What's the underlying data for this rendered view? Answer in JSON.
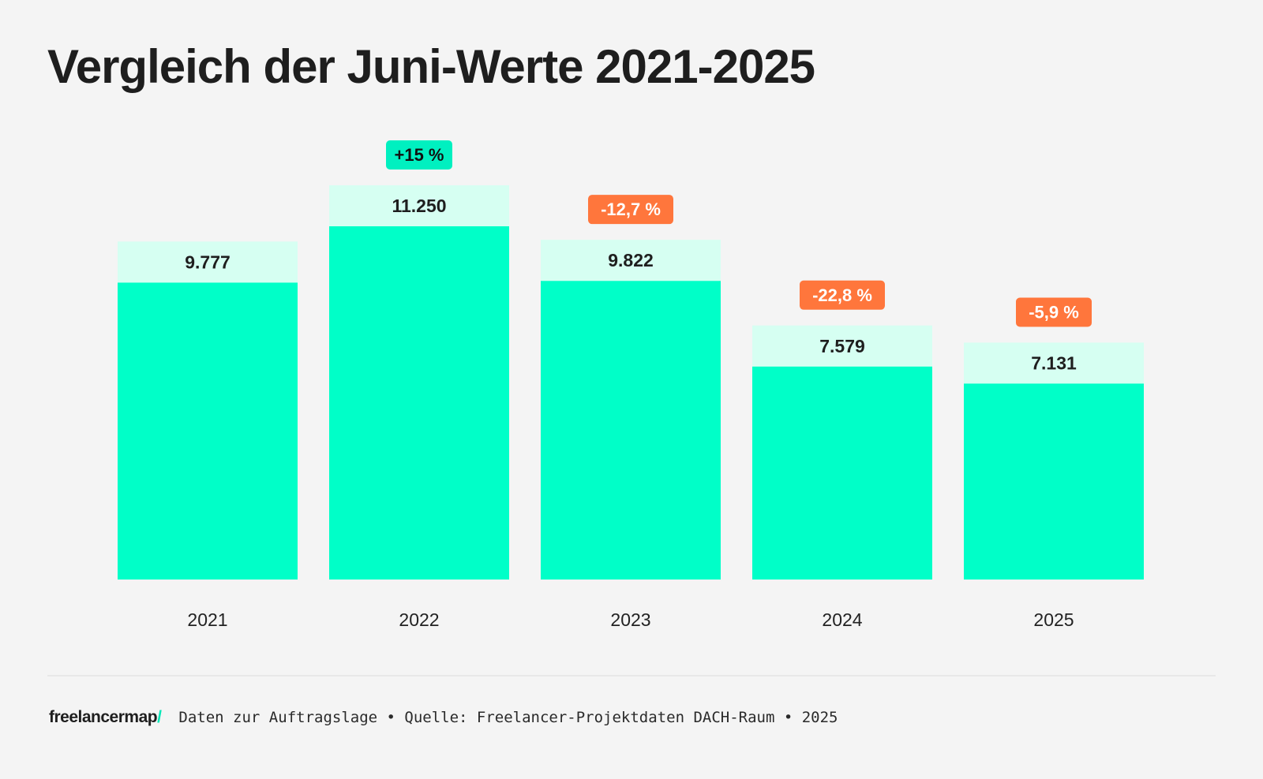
{
  "title": "Vergleich der Juni-Werte 2021-2025",
  "chart_data": {
    "type": "bar",
    "title": "Vergleich der Juni-Werte 2021-2025",
    "categories": [
      "2021",
      "2022",
      "2023",
      "2024",
      "2025"
    ],
    "values": [
      9777,
      11250,
      9822,
      7579,
      7131
    ],
    "value_labels": [
      "9.777",
      "11.250",
      "9.822",
      "7.579",
      "7.131"
    ],
    "change_labels": [
      "",
      "+15 %",
      "-12,7 %",
      "-22,8 %",
      "-5,9 %"
    ],
    "change_direction": [
      "",
      "up",
      "down",
      "down",
      "down"
    ],
    "xlabel": "",
    "ylabel": "",
    "grid": false,
    "colors": {
      "bar": "#00ffc8",
      "label_box": "#d6fff2",
      "up": "#00f0c0",
      "down": "#ff763c"
    }
  },
  "footer": {
    "logo_text": "freelancermap",
    "logo_slash": "/",
    "source": "Daten zur Auftragslage • Quelle: Freelancer-Projektdaten DACH-Raum • 2025"
  }
}
